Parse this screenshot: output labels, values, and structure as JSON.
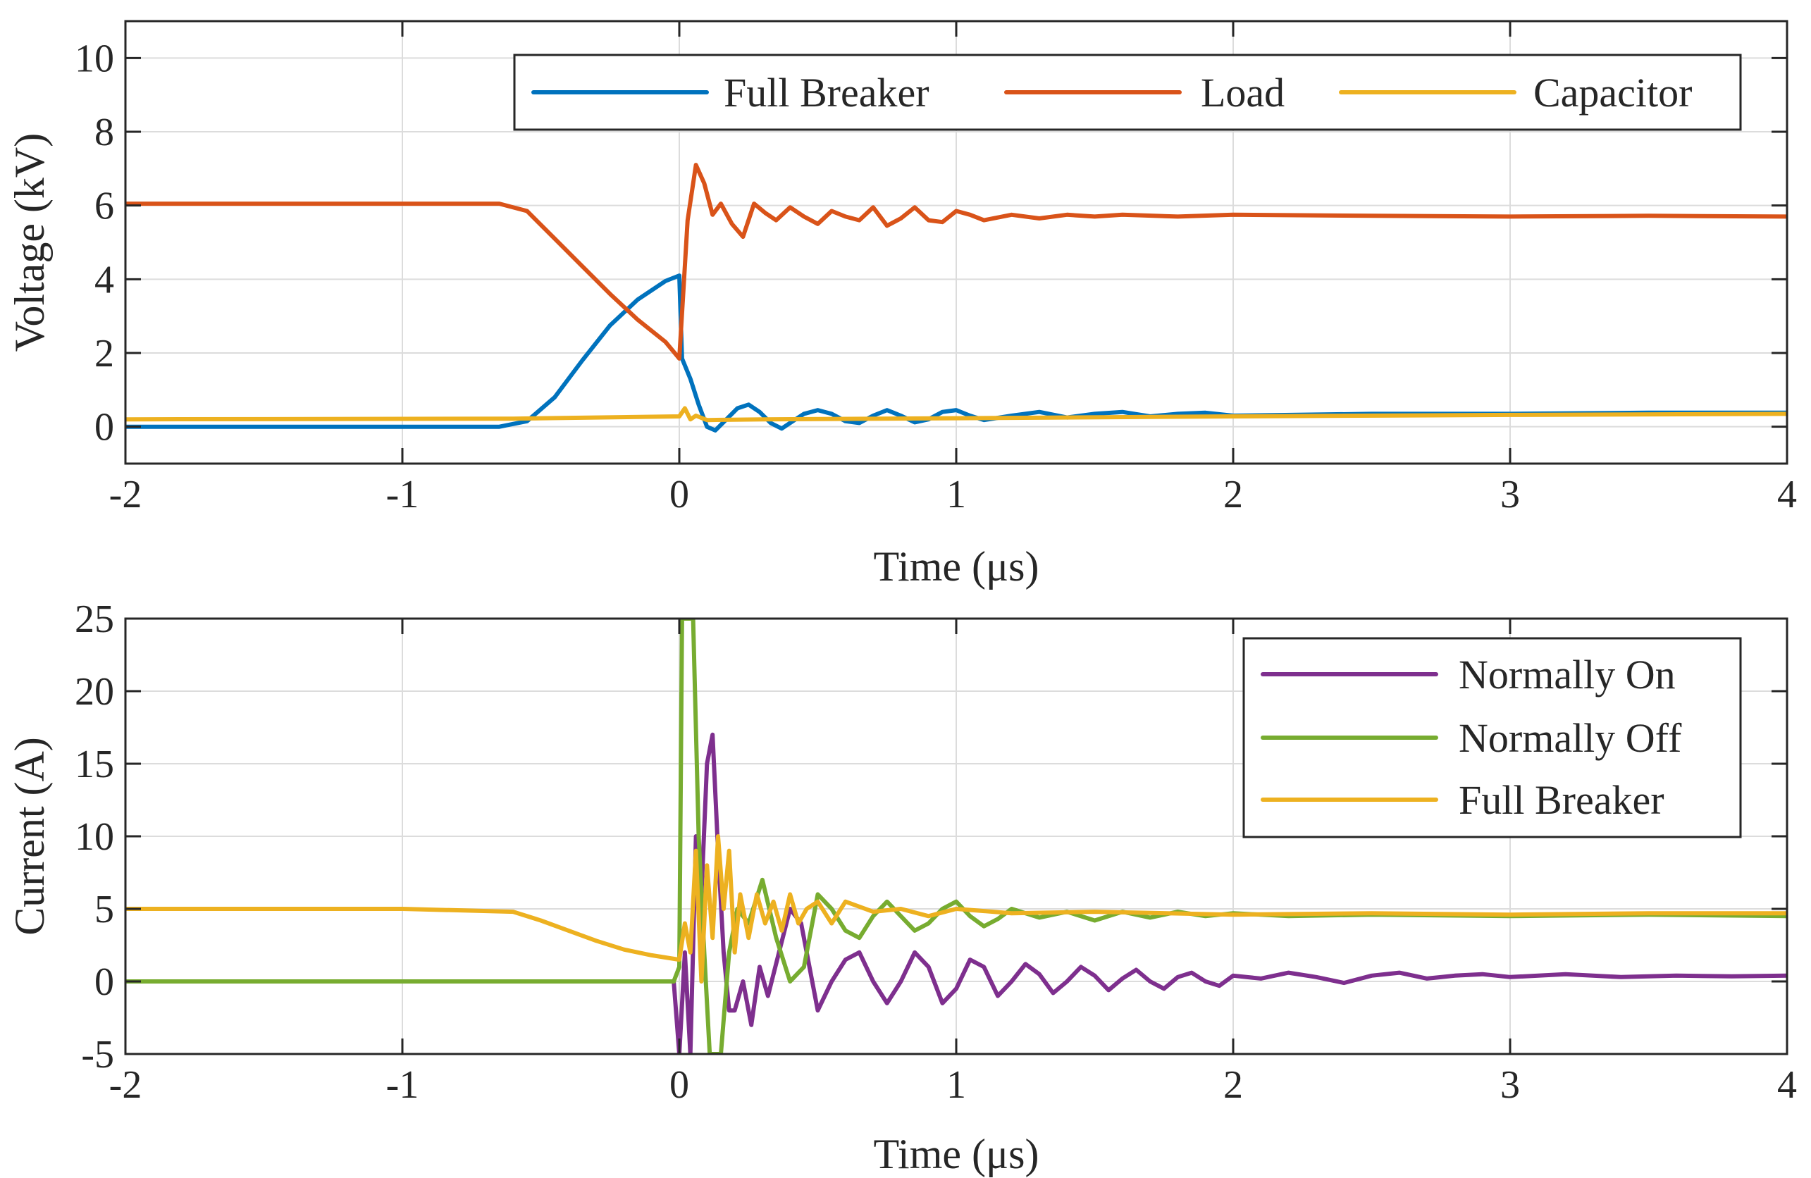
{
  "colors": {
    "blue": "#0072BD",
    "orange": "#D95319",
    "yellow": "#EDB120",
    "purple": "#7E2F8E",
    "green": "#77AC30"
  },
  "chart_data": [
    {
      "type": "line",
      "title": "",
      "xlabel": "Time (μs)",
      "ylabel": "Voltage (kV)",
      "xlim": [
        -2,
        4
      ],
      "ylim": [
        -1,
        11
      ],
      "xticks": [
        -2,
        -1,
        0,
        1,
        2,
        3,
        4
      ],
      "yticks": [
        0,
        2,
        4,
        6,
        8,
        10
      ],
      "xtick_labels": [
        "-2",
        "-1",
        "0",
        "1",
        "2",
        "3",
        "4"
      ],
      "ytick_labels": [
        "0",
        "2",
        "4",
        "6",
        "8",
        "10"
      ],
      "grid": true,
      "legend_position": "top-right",
      "legend_orientation": "horizontal",
      "series": [
        {
          "name": "Full Breaker",
          "color_key": "blue",
          "x": [
            -2,
            -0.65,
            -0.55,
            -0.45,
            -0.35,
            -0.25,
            -0.15,
            -0.05,
            0.0,
            0.01,
            0.04,
            0.07,
            0.1,
            0.13,
            0.17,
            0.21,
            0.25,
            0.29,
            0.33,
            0.37,
            0.41,
            0.45,
            0.5,
            0.55,
            0.6,
            0.65,
            0.7,
            0.75,
            0.8,
            0.85,
            0.9,
            0.95,
            1.0,
            1.05,
            1.1,
            1.2,
            1.3,
            1.4,
            1.5,
            1.6,
            1.7,
            1.8,
            1.9,
            2.0,
            2.5,
            3.0,
            3.5,
            4.0
          ],
          "y": [
            0.0,
            0.0,
            0.15,
            0.8,
            1.8,
            2.75,
            3.45,
            3.95,
            4.1,
            1.85,
            1.3,
            0.6,
            0.0,
            -0.1,
            0.2,
            0.5,
            0.6,
            0.4,
            0.1,
            -0.05,
            0.15,
            0.35,
            0.45,
            0.35,
            0.15,
            0.1,
            0.3,
            0.45,
            0.3,
            0.12,
            0.2,
            0.4,
            0.45,
            0.3,
            0.18,
            0.3,
            0.4,
            0.25,
            0.35,
            0.4,
            0.28,
            0.35,
            0.38,
            0.3,
            0.35,
            0.35,
            0.38,
            0.38
          ]
        },
        {
          "name": "Load",
          "color_key": "orange",
          "x": [
            -2,
            -0.65,
            -0.55,
            -0.45,
            -0.35,
            -0.25,
            -0.15,
            -0.05,
            0.0,
            0.03,
            0.06,
            0.09,
            0.12,
            0.15,
            0.19,
            0.23,
            0.27,
            0.31,
            0.35,
            0.4,
            0.45,
            0.5,
            0.55,
            0.6,
            0.65,
            0.7,
            0.75,
            0.8,
            0.85,
            0.9,
            0.95,
            1.0,
            1.05,
            1.1,
            1.2,
            1.3,
            1.4,
            1.5,
            1.6,
            1.8,
            2.0,
            2.5,
            3.0,
            3.5,
            4.0
          ],
          "y": [
            6.05,
            6.05,
            5.85,
            5.1,
            4.35,
            3.6,
            2.9,
            2.3,
            1.85,
            5.6,
            7.1,
            6.6,
            5.75,
            6.05,
            5.5,
            5.15,
            6.05,
            5.8,
            5.6,
            5.95,
            5.7,
            5.5,
            5.85,
            5.7,
            5.6,
            5.95,
            5.45,
            5.65,
            5.95,
            5.6,
            5.55,
            5.85,
            5.75,
            5.6,
            5.75,
            5.65,
            5.75,
            5.7,
            5.75,
            5.7,
            5.75,
            5.72,
            5.7,
            5.72,
            5.7
          ]
        },
        {
          "name": "Capacitor",
          "color_key": "yellow",
          "x": [
            -2,
            -0.6,
            0.0,
            0.02,
            0.04,
            0.06,
            0.1,
            0.3,
            1.0,
            2.0,
            3.0,
            4.0
          ],
          "y": [
            0.2,
            0.22,
            0.28,
            0.5,
            0.2,
            0.3,
            0.18,
            0.2,
            0.23,
            0.28,
            0.32,
            0.35
          ]
        }
      ]
    },
    {
      "type": "line",
      "title": "",
      "xlabel": "Time (μs)",
      "ylabel": "Current (A)",
      "xlim": [
        -2,
        4
      ],
      "ylim": [
        -5,
        25
      ],
      "xticks": [
        -2,
        -1,
        0,
        1,
        2,
        3,
        4
      ],
      "yticks": [
        -5,
        0,
        5,
        10,
        15,
        20,
        25
      ],
      "xtick_labels": [
        "-2",
        "-1",
        "0",
        "1",
        "2",
        "3",
        "4"
      ],
      "ytick_labels": [
        "-5",
        "0",
        "5",
        "10",
        "15",
        "20",
        "25"
      ],
      "grid": true,
      "legend_position": "top-right",
      "legend_orientation": "vertical",
      "series": [
        {
          "name": "Normally On",
          "color_key": "purple",
          "x": [
            -2,
            -0.02,
            0.0,
            0.02,
            0.04,
            0.06,
            0.08,
            0.1,
            0.12,
            0.14,
            0.16,
            0.18,
            0.2,
            0.23,
            0.26,
            0.29,
            0.32,
            0.36,
            0.4,
            0.44,
            0.47,
            0.5,
            0.55,
            0.6,
            0.65,
            0.7,
            0.75,
            0.8,
            0.85,
            0.9,
            0.95,
            1.0,
            1.05,
            1.1,
            1.15,
            1.2,
            1.25,
            1.3,
            1.35,
            1.4,
            1.45,
            1.5,
            1.55,
            1.6,
            1.65,
            1.7,
            1.75,
            1.8,
            1.85,
            1.9,
            1.95,
            2.0,
            2.1,
            2.2,
            2.3,
            2.4,
            2.5,
            2.6,
            2.7,
            2.8,
            2.9,
            3.0,
            3.2,
            3.4,
            3.6,
            3.8,
            4.0
          ],
          "y": [
            0,
            0,
            -5,
            2,
            -5,
            10,
            6,
            15,
            17,
            9,
            2,
            -2,
            -2,
            0,
            -3,
            1,
            -1,
            2,
            5,
            4,
            1,
            -2,
            0,
            1.5,
            2,
            0,
            -1.5,
            0,
            2,
            1,
            -1.5,
            -0.5,
            1.5,
            1,
            -1,
            0,
            1.2,
            0.5,
            -0.8,
            0,
            1,
            0.4,
            -0.6,
            0.2,
            0.8,
            0,
            -0.5,
            0.3,
            0.6,
            0,
            -0.3,
            0.4,
            0.2,
            0.6,
            0.3,
            -0.1,
            0.4,
            0.6,
            0.2,
            0.4,
            0.5,
            0.3,
            0.5,
            0.3,
            0.4,
            0.35,
            0.4
          ]
        },
        {
          "name": "Normally Off",
          "color_key": "green",
          "x": [
            -2,
            -0.02,
            0.0,
            0.01,
            0.03,
            0.05,
            0.07,
            0.09,
            0.11,
            0.13,
            0.15,
            0.18,
            0.21,
            0.25,
            0.3,
            0.35,
            0.4,
            0.45,
            0.5,
            0.55,
            0.6,
            0.65,
            0.7,
            0.75,
            0.8,
            0.85,
            0.9,
            0.95,
            1.0,
            1.05,
            1.1,
            1.15,
            1.2,
            1.3,
            1.4,
            1.5,
            1.6,
            1.7,
            1.8,
            1.9,
            2.0,
            2.2,
            2.5,
            3.0,
            3.5,
            4.0
          ],
          "y": [
            0,
            0,
            1,
            25,
            25,
            25,
            10,
            2,
            -5,
            -5,
            -5,
            2,
            5,
            4,
            7,
            3,
            0,
            1,
            6,
            5,
            3.5,
            3,
            4.5,
            5.5,
            4.5,
            3.5,
            4,
            5,
            5.5,
            4.5,
            3.8,
            4.3,
            5,
            4.4,
            4.8,
            4.2,
            4.8,
            4.4,
            4.8,
            4.5,
            4.7,
            4.5,
            4.6,
            4.5,
            4.6,
            4.5
          ]
        },
        {
          "name": "Full Breaker",
          "color_key": "yellow",
          "x": [
            -2,
            -1.5,
            -1.0,
            -0.6,
            -0.5,
            -0.4,
            -0.3,
            -0.2,
            -0.1,
            0.0,
            0.02,
            0.04,
            0.06,
            0.08,
            0.1,
            0.12,
            0.14,
            0.16,
            0.18,
            0.2,
            0.22,
            0.25,
            0.28,
            0.31,
            0.34,
            0.37,
            0.4,
            0.43,
            0.46,
            0.5,
            0.55,
            0.6,
            0.7,
            0.8,
            0.9,
            1.0,
            1.2,
            1.5,
            2.0,
            2.5,
            3.0,
            3.5,
            4.0
          ],
          "y": [
            5,
            5,
            5,
            4.8,
            4.2,
            3.5,
            2.8,
            2.2,
            1.8,
            1.5,
            4,
            2,
            9,
            0,
            8,
            3,
            10,
            5,
            9,
            2,
            6,
            3,
            6,
            4,
            5.5,
            3.5,
            6,
            4,
            5,
            5.5,
            4,
            5.5,
            4.8,
            5,
            4.5,
            5,
            4.7,
            4.8,
            4.6,
            4.7,
            4.6,
            4.7,
            4.7
          ]
        }
      ]
    }
  ]
}
